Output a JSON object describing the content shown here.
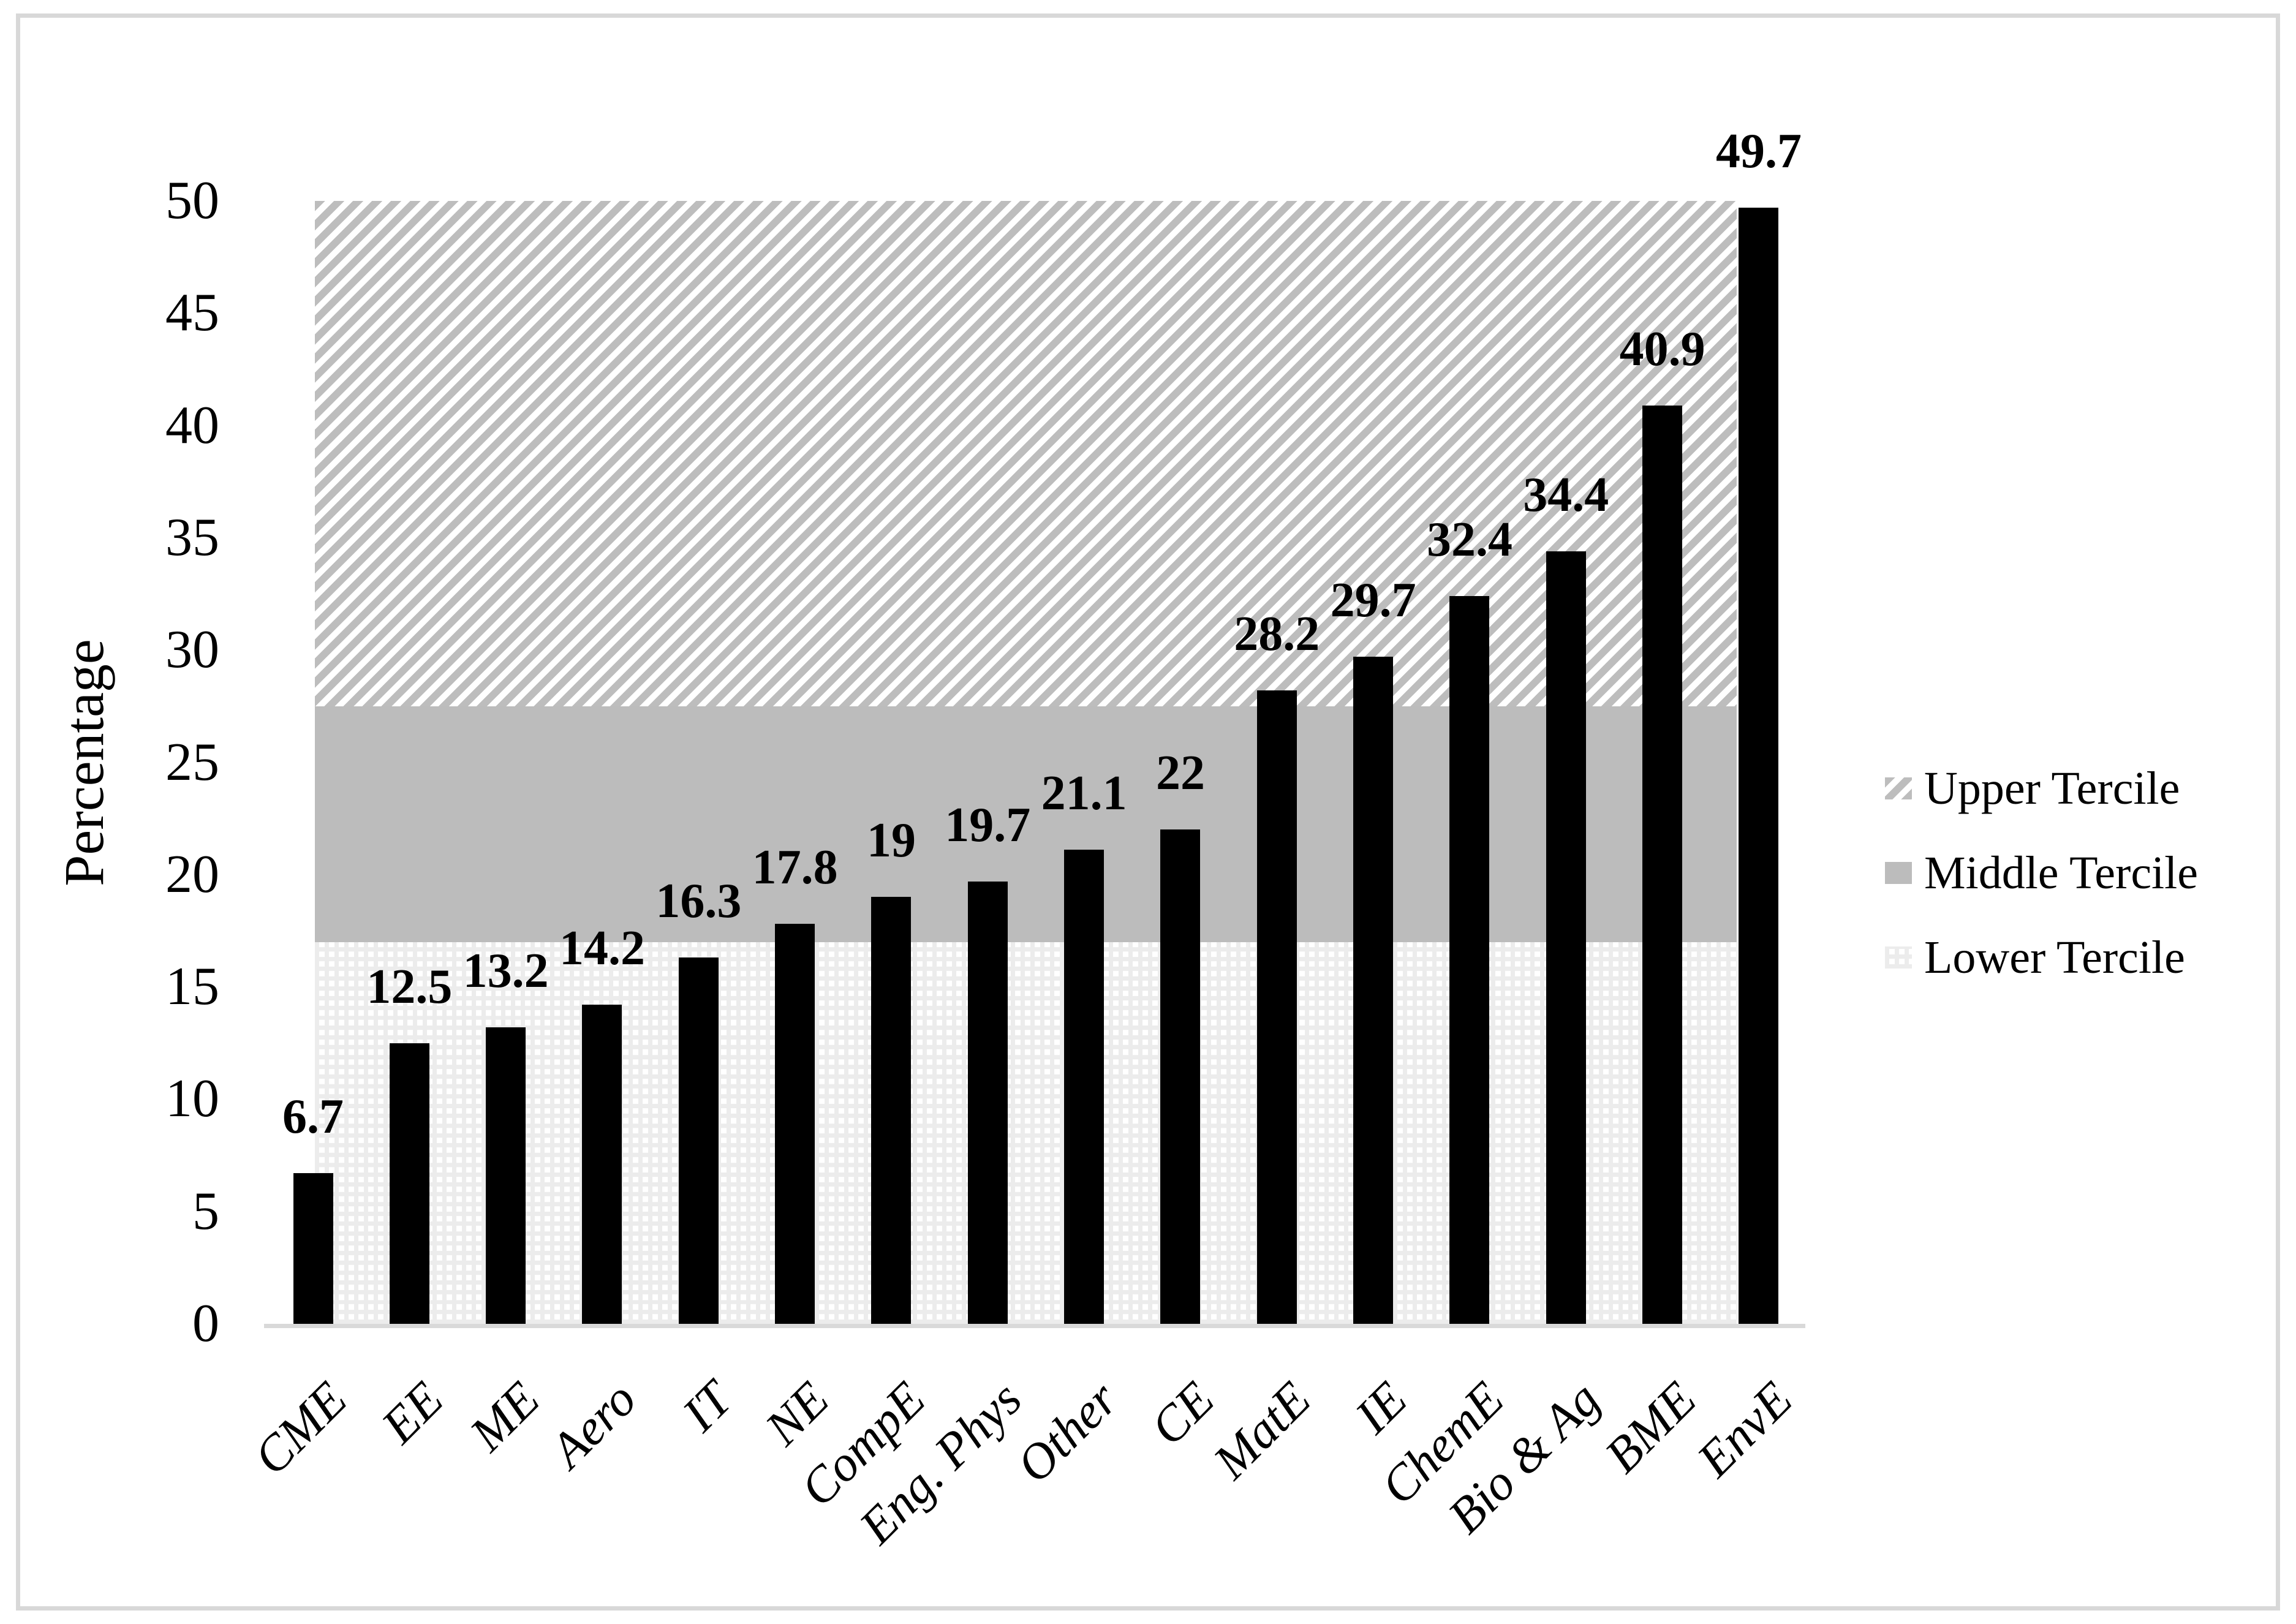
{
  "figure": {
    "ylabel": "Percentage",
    "legend": [
      {
        "label": "Upper Tercile",
        "pattern": "hatch"
      },
      {
        "label": "Middle Tercile",
        "pattern": "solid"
      },
      {
        "label": "Lower Tercile",
        "pattern": "dots"
      }
    ]
  },
  "chart_data": {
    "type": "bar",
    "title": "",
    "xlabel": "",
    "ylabel": "Percentage",
    "categories": [
      "CME",
      "EE",
      "ME",
      "Aero",
      "IT",
      "NE",
      "CompE",
      "Eng. Phys",
      "Other",
      "CE",
      "MatE",
      "IE",
      "ChemE",
      "Bio & Ag",
      "BME",
      "EnvE"
    ],
    "values": [
      6.7,
      12.5,
      13.2,
      14.2,
      16.3,
      17.8,
      19,
      19.7,
      21.1,
      22,
      28.2,
      29.7,
      32.4,
      34.4,
      40.9,
      49.7
    ],
    "value_labels": [
      "6.7",
      "12.5",
      "13.2",
      "14.2",
      "16.3",
      "17.8",
      "19",
      "19.7",
      "21.1",
      "22",
      "28.2",
      "29.7",
      "32.4",
      "34.4",
      "40.9",
      "49.7"
    ],
    "ylim": [
      0,
      50
    ],
    "ytick_step": 5,
    "ytick_labels": [
      "0",
      "5",
      "10",
      "15",
      "20",
      "25",
      "30",
      "35",
      "40",
      "45",
      "50"
    ],
    "grid": false,
    "bar_color": "#000000",
    "legend_position": "right",
    "bands": [
      {
        "name": "Lower Tercile",
        "from": 0,
        "to": 17,
        "pattern": "dots"
      },
      {
        "name": "Middle Tercile",
        "from": 17,
        "to": 27.5,
        "pattern": "solid"
      },
      {
        "name": "Upper Tercile",
        "from": 27.5,
        "to": 50,
        "pattern": "hatch"
      }
    ],
    "colors": {
      "bar": "#000000",
      "band_gray": "#bcbcbc",
      "band_light_base": "#ececec",
      "axis_line": "#d9d9d9",
      "chart_border": "#d8d8d8",
      "text": "#000000"
    }
  }
}
